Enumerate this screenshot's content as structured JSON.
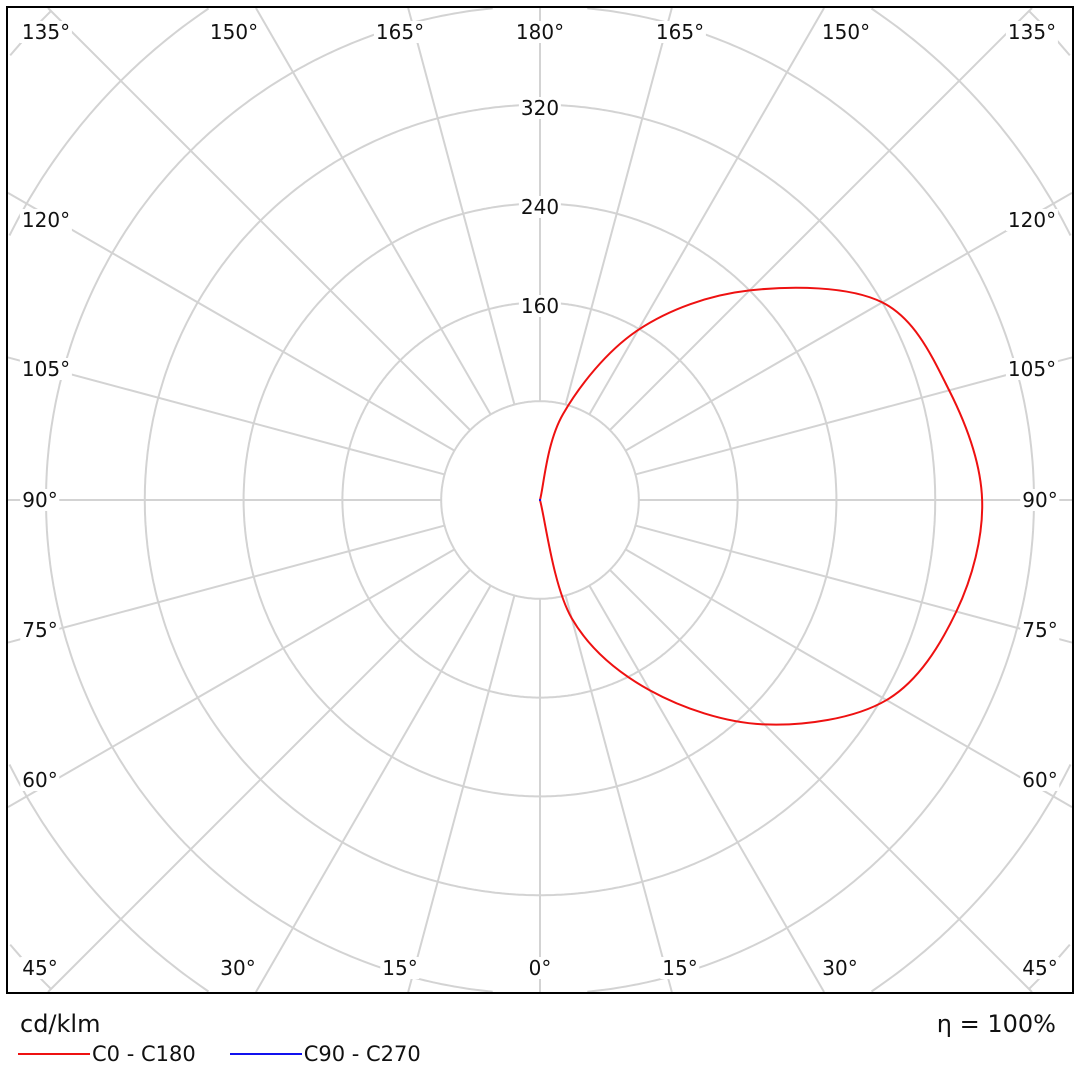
{
  "chart_data": {
    "type": "polar",
    "unit": "cd/klm",
    "efficiency": "η = 100%",
    "rings": [
      80,
      160,
      240,
      320,
      400,
      480,
      560
    ],
    "ring_labels": [
      "160",
      "240",
      "320"
    ],
    "angle_step_deg": 15,
    "angle_labels": {
      "top": [
        "135°",
        "150°",
        "165°",
        "180°",
        "165°",
        "150°",
        "135°"
      ],
      "left": [
        "120°",
        "105°",
        "90°",
        "75°",
        "60°",
        "45°"
      ],
      "right": [
        "120°",
        "105°",
        "90°",
        "75°",
        "60°"
      ],
      "bottom": [
        "30°",
        "15°",
        "0°",
        "15°",
        "30°",
        "45°"
      ]
    },
    "series": [
      {
        "name": "C0 - C180",
        "color": "#ee1111",
        "gamma": [
          0,
          15,
          30,
          45,
          60,
          75,
          90,
          105,
          120,
          135,
          150,
          165,
          180
        ],
        "values": [
          0,
          99,
          178,
          257,
          324,
          349,
          358,
          343,
          320,
          240,
          159,
          72,
          0
        ]
      },
      {
        "name": "C90 - C270",
        "color": "#1111ee",
        "gamma": [
          0,
          90,
          180
        ],
        "values": [
          0,
          0,
          0
        ]
      }
    ]
  }
}
